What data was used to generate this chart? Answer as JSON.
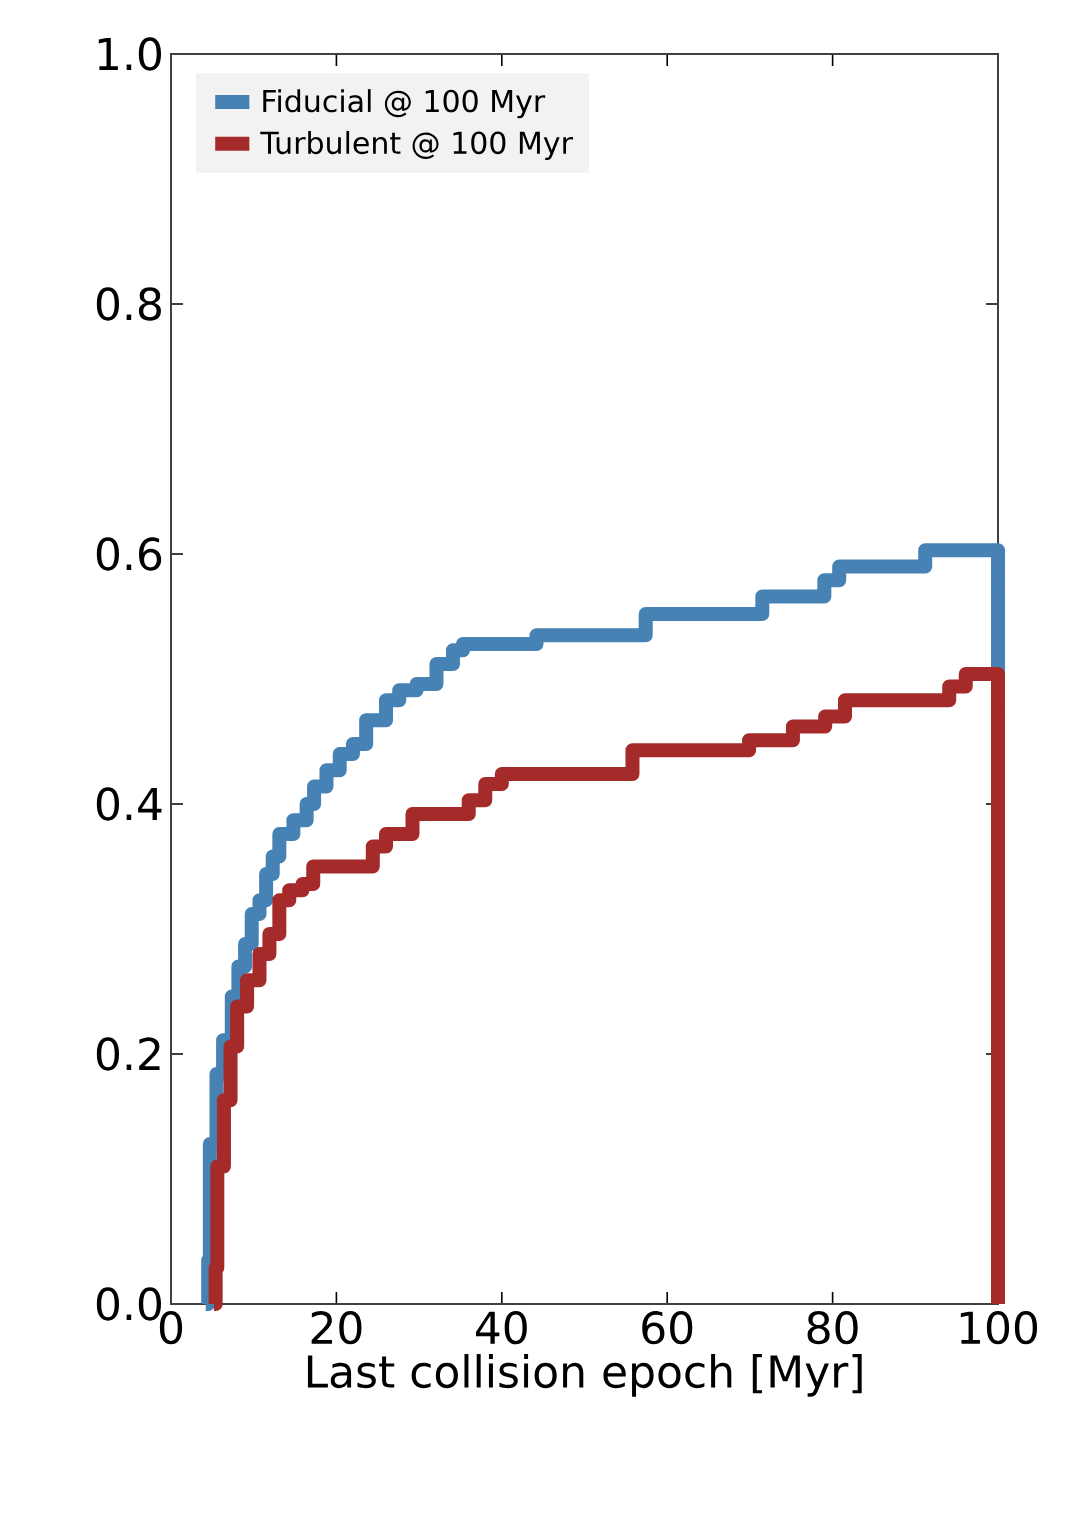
{
  "chart_data": {
    "type": "step",
    "xlabel": "Last collision epoch [Myr]",
    "xlim": [
      0,
      100
    ],
    "ylim": [
      0,
      1
    ],
    "xticks": [
      0,
      20,
      40,
      60,
      80,
      100
    ],
    "yticks": [
      {
        "value": 0,
        "label": "0.0"
      },
      {
        "value": 0.2,
        "label": "0.2"
      },
      {
        "value": 0.4,
        "label": "0.4"
      },
      {
        "value": 0.6,
        "label": "0.6"
      },
      {
        "value": 0.8,
        "label": "0.8"
      },
      {
        "value": 1,
        "label": "1.0"
      }
    ],
    "legend": "top left",
    "series": [
      {
        "name": "Fiducial @ 100 Myr",
        "color": "#4682b4",
        "x": [
          4.2,
          4.5,
          4.7,
          5.5,
          6.3,
          7.35,
          8.15,
          8.96,
          9.76,
          10.7,
          11.5,
          12.3,
          13.1,
          14.8,
          16.4,
          17.3,
          18.8,
          20.4,
          22.0,
          23.6,
          26.0,
          27.6,
          29.7,
          32.1,
          34.1,
          35.3,
          44.2,
          57.4,
          71.5,
          79.0,
          80.8,
          91.2,
          100
        ],
        "values": [
          0,
          0.035,
          0.128,
          0.184,
          0.211,
          0.246,
          0.27,
          0.288,
          0.312,
          0.323,
          0.344,
          0.358,
          0.376,
          0.387,
          0.4,
          0.414,
          0.427,
          0.44,
          0.448,
          0.467,
          0.483,
          0.491,
          0.496,
          0.512,
          0.523,
          0.528,
          0.535,
          0.552,
          0.566,
          0.579,
          0.59,
          0.603,
          0
        ]
      },
      {
        "name": "Turbulent @ 100 Myr",
        "color": "#a52a2a",
        "x": [
          5.2,
          5.4,
          5.6,
          6.4,
          7.2,
          8.0,
          9.2,
          10.7,
          11.9,
          13.1,
          14.3,
          15.9,
          17.2,
          24.4,
          26.0,
          29.2,
          36.0,
          38.0,
          40.0,
          55.8,
          69.9,
          75.2,
          79.1,
          81.5,
          94.1,
          96.1,
          100
        ],
        "values": [
          0,
          0.029,
          0.11,
          0.163,
          0.206,
          0.238,
          0.259,
          0.28,
          0.296,
          0.323,
          0.331,
          0.336,
          0.35,
          0.366,
          0.376,
          0.392,
          0.403,
          0.416,
          0.424,
          0.443,
          0.451,
          0.462,
          0.47,
          0.483,
          0.494,
          0.504,
          0
        ]
      }
    ]
  }
}
